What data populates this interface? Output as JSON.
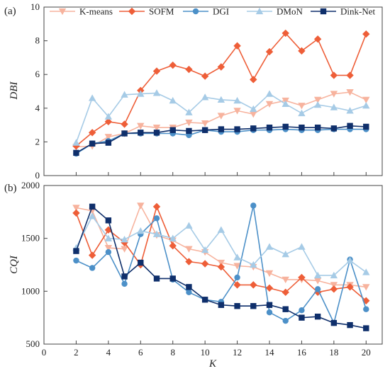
{
  "chart_data": [
    {
      "panel_label": "(a)",
      "type": "line",
      "ylabel": "DBI",
      "xlabel": "",
      "ylim": [
        0,
        10
      ],
      "yticks": [
        "0",
        "2",
        "4",
        "6",
        "8",
        "10"
      ],
      "xlim": [
        0,
        21
      ],
      "xticks": [
        "0",
        "2",
        "4",
        "6",
        "8",
        "10",
        "12",
        "14",
        "16",
        "18",
        "20"
      ],
      "legend_position": "top",
      "x": [
        2,
        3,
        4,
        5,
        6,
        7,
        8,
        9,
        10,
        11,
        12,
        13,
        14,
        15,
        16,
        17,
        18,
        19,
        20
      ],
      "series": [
        {
          "name": "K-means",
          "color": "#F7B39E",
          "marker": "triangle-down",
          "values": [
            1.7,
            1.75,
            2.3,
            2.5,
            2.95,
            2.85,
            2.85,
            3.15,
            3.1,
            3.55,
            3.85,
            3.65,
            4.25,
            4.45,
            4.15,
            4.5,
            4.85,
            4.95,
            4.5
          ]
        },
        {
          "name": "SOFM",
          "color": "#EE5E38",
          "marker": "diamond",
          "values": [
            1.75,
            2.55,
            3.2,
            3.05,
            5.05,
            6.2,
            6.55,
            6.3,
            5.9,
            6.45,
            7.7,
            5.7,
            7.35,
            8.45,
            7.4,
            8.1,
            5.95,
            5.95,
            8.4
          ]
        },
        {
          "name": "DGI",
          "color": "#4C90C8",
          "marker": "circle",
          "values": [
            1.3,
            1.9,
            2.05,
            2.5,
            2.5,
            2.5,
            2.5,
            2.4,
            2.7,
            2.6,
            2.6,
            2.7,
            2.7,
            2.75,
            2.7,
            2.7,
            2.75,
            2.75,
            2.75
          ]
        },
        {
          "name": "DMoN",
          "color": "#A6CBE6",
          "marker": "triangle-up",
          "values": [
            1.95,
            4.6,
            3.5,
            4.8,
            4.85,
            4.9,
            4.45,
            3.75,
            4.65,
            4.5,
            4.45,
            3.95,
            4.85,
            4.25,
            3.7,
            4.2,
            4.05,
            3.85,
            4.15
          ]
        },
        {
          "name": "Dink-Net",
          "color": "#0F2F6B",
          "marker": "square",
          "values": [
            1.35,
            1.9,
            1.95,
            2.5,
            2.55,
            2.55,
            2.7,
            2.65,
            2.7,
            2.75,
            2.75,
            2.8,
            2.85,
            2.9,
            2.85,
            2.85,
            2.8,
            2.95,
            2.9
          ]
        }
      ]
    },
    {
      "panel_label": "(b)",
      "type": "line",
      "ylabel": "CQI",
      "xlabel": "K",
      "ylim": [
        500,
        2000
      ],
      "yticks": [
        "500",
        "1000",
        "1500",
        "2000"
      ],
      "xlim": [
        0,
        21
      ],
      "xticks": [
        "0",
        "2",
        "4",
        "6",
        "8",
        "10",
        "12",
        "14",
        "16",
        "18",
        "20"
      ],
      "x": [
        2,
        3,
        4,
        5,
        6,
        7,
        8,
        9,
        10,
        11,
        12,
        13,
        14,
        15,
        16,
        17,
        18,
        19,
        20
      ],
      "series": [
        {
          "name": "K-means",
          "color": "#F7B39E",
          "marker": "triangle-down",
          "values": [
            1790,
            1760,
            1410,
            1400,
            1810,
            1530,
            1480,
            1400,
            1370,
            1270,
            1240,
            1230,
            1170,
            1110,
            1110,
            1100,
            1060,
            1060,
            1040
          ]
        },
        {
          "name": "SOFM",
          "color": "#EE5E38",
          "marker": "diamond",
          "values": [
            1740,
            1340,
            1580,
            1460,
            1250,
            1800,
            1430,
            1280,
            1260,
            1230,
            1060,
            1060,
            1030,
            990,
            1130,
            990,
            1020,
            1040,
            910
          ]
        },
        {
          "name": "DGI",
          "color": "#4C90C8",
          "marker": "circle",
          "values": [
            1290,
            1220,
            1370,
            1070,
            1540,
            1690,
            1110,
            990,
            920,
            900,
            1130,
            1810,
            800,
            720,
            820,
            1020,
            700,
            1300,
            830
          ]
        },
        {
          "name": "DMoN",
          "color": "#A6CBE6",
          "marker": "triangle-up",
          "values": [
            1410,
            1710,
            1500,
            1490,
            1570,
            1540,
            1500,
            1620,
            1390,
            1580,
            1320,
            1250,
            1420,
            1350,
            1420,
            1150,
            1150,
            1290,
            1180
          ]
        },
        {
          "name": "Dink-Net",
          "color": "#0F2F6B",
          "marker": "square",
          "values": [
            1380,
            1800,
            1670,
            1140,
            1270,
            1120,
            1120,
            1040,
            920,
            870,
            860,
            860,
            870,
            830,
            750,
            760,
            700,
            680,
            650
          ]
        }
      ]
    }
  ]
}
